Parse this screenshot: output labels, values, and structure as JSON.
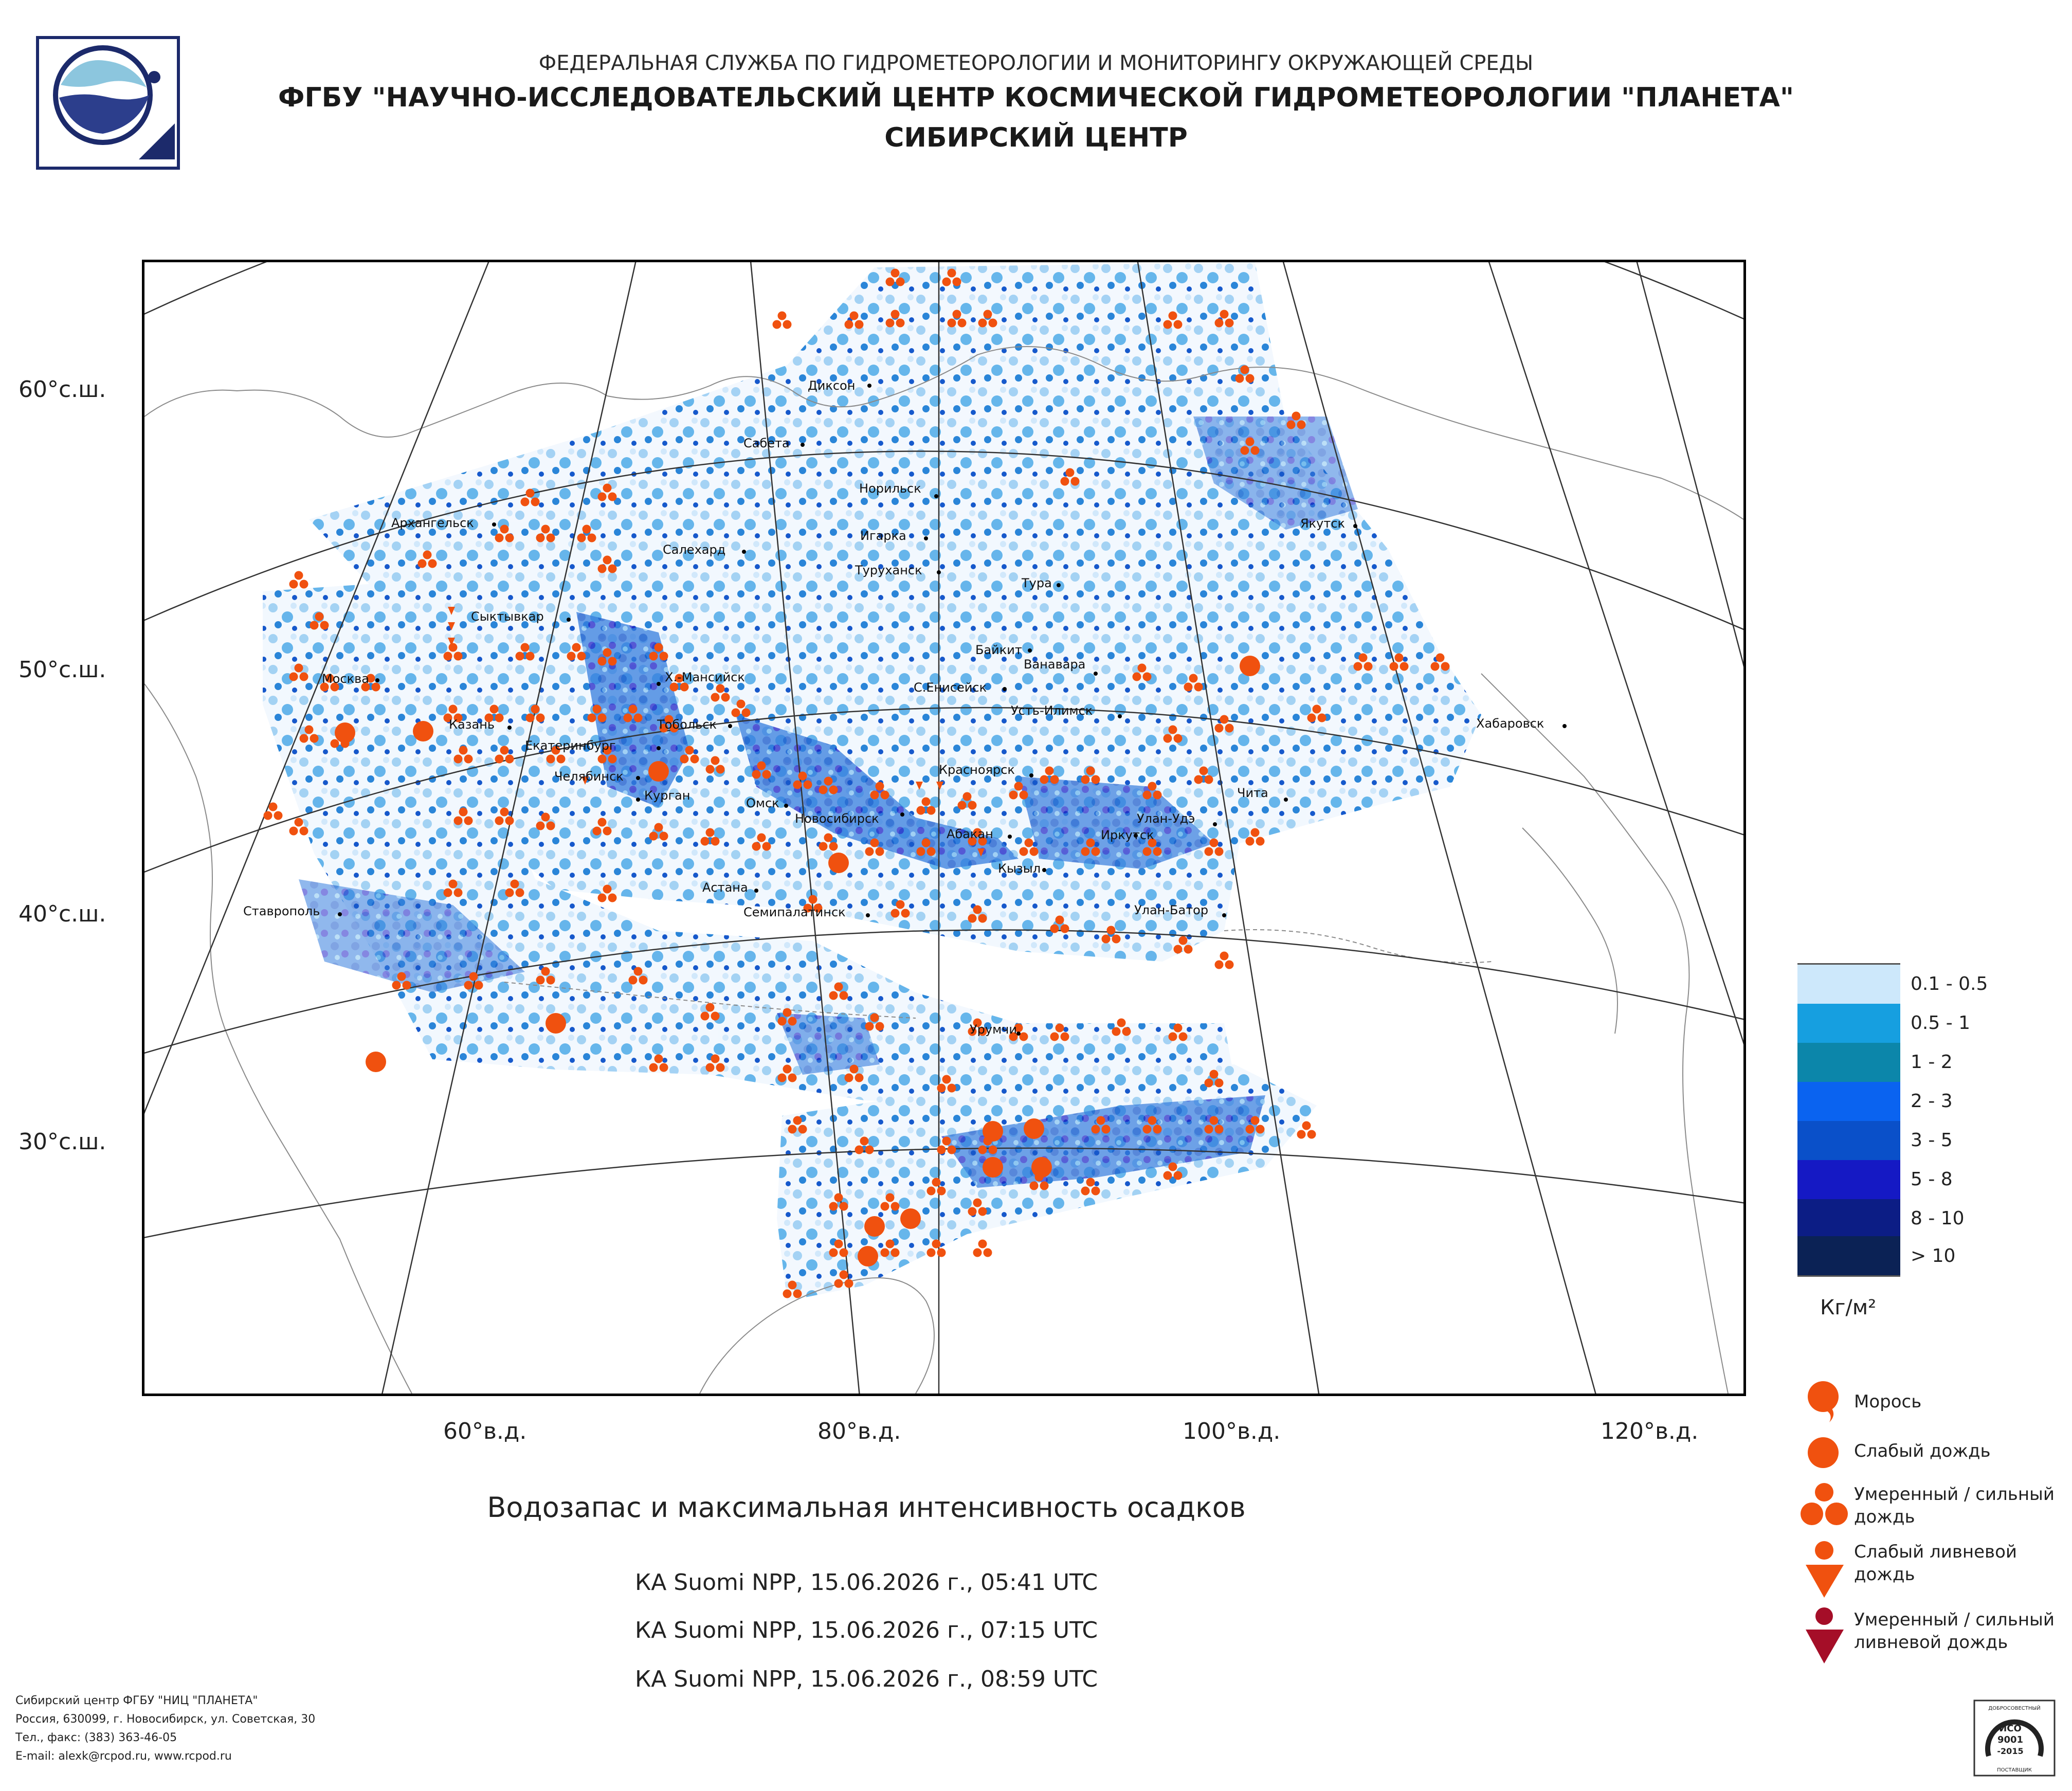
{
  "header": {
    "line1": "ФЕДЕРАЛЬНАЯ СЛУЖБА ПО ГИДРОМЕТЕОРОЛОГИИ И МОНИТОРИНГУ ОКРУЖАЮЩЕЙ СРЕДЫ",
    "line2": "ФГБУ \"НАУЧНО-ИССЛЕДОВАТЕЛЬСКИЙ ЦЕНТР КОСМИЧЕСКОЙ ГИДРОМЕТЕОРОЛОГИИ \"ПЛАНЕТА\"",
    "line3": "СИБИРСКИЙ ЦЕНТР"
  },
  "map": {
    "latitude_labels": [
      "60°с.ш.",
      "50°с.ш.",
      "40°с.ш.",
      "30°с.ш."
    ],
    "longitude_labels": [
      "60°в.д.",
      "80°в.д.",
      "100°в.д.",
      "120°в.д."
    ],
    "cities": [
      "Диксон",
      "Сабета",
      "Норильск",
      "Архангельск",
      "Салехард",
      "Игарка",
      "Туруханск",
      "Якутск",
      "Тура",
      "Сыктывкар",
      "Байкит",
      "Ванавара",
      "Х.-Мансийск",
      "С.Енисейск",
      "Москва",
      "Усть-Илимск",
      "Хабаровск",
      "Казань",
      "Тобольск",
      "Екатеринбург",
      "Красноярск",
      "Челябинск",
      "Курган",
      "Чита",
      "Омск",
      "Новосибирск",
      "Улан-Удэ",
      "Абакан",
      "Иркутск",
      "Кызыл",
      "Астана",
      "Ставрополь",
      "Семипалатинск",
      "Улан-Батор",
      "Урумчи"
    ]
  },
  "legend": {
    "colors": [
      "#cde8fb",
      "#169fe0",
      "#0c86aa",
      "#0a63f0",
      "#0a50c9",
      "#1519c4",
      "#0c1d85",
      "#0b2255"
    ],
    "labels": [
      "0.1 - 0.5",
      "0.5 - 1",
      "1 - 2",
      "2 - 3",
      "3 - 5",
      "5 - 8",
      "8 - 10",
      "> 10"
    ],
    "units": "Кг/м²",
    "symbols": [
      {
        "icon": "drizzle-icon",
        "label": "Морось"
      },
      {
        "icon": "light-rain-icon",
        "label": "Слабый дождь"
      },
      {
        "icon": "moderate-rain-icon",
        "label": "Умеренный / сильный дождь"
      },
      {
        "icon": "light-shower-icon",
        "label": "Слабый ливневой дождь"
      },
      {
        "icon": "heavy-shower-icon",
        "label": "Умеренный / сильный ливневой дождь"
      }
    ],
    "symbol_color": "#f0510f",
    "heavy_symbol_color": "#a50e28"
  },
  "caption": {
    "title": "Водозапас и максимальная интенсивность осадков",
    "passes": [
      "КА Suomi NPP, 15.06.2026 г., 05:41 UTC",
      "КА Suomi NPP, 15.06.2026 г., 07:15 UTC",
      "КА Suomi NPP, 15.06.2026 г., 08:59 UTC"
    ]
  },
  "footer": {
    "lines": [
      "Сибирский центр ФГБУ \"НИЦ \"ПЛАНЕТА\"",
      "Россия, 630099, г. Новосибирск, ул. Советская, 30",
      "Тел., факс: (383) 363-46-05",
      "E-mail: alexk@rcpod.ru, www.rcpod.ru"
    ]
  },
  "certificate": {
    "line1": "ДОБРОСОВЕСТНЫЙ",
    "line2": "ИСО",
    "line3": "9001",
    "line4": "-2015",
    "line5": "ПОСТАВЩИК"
  }
}
